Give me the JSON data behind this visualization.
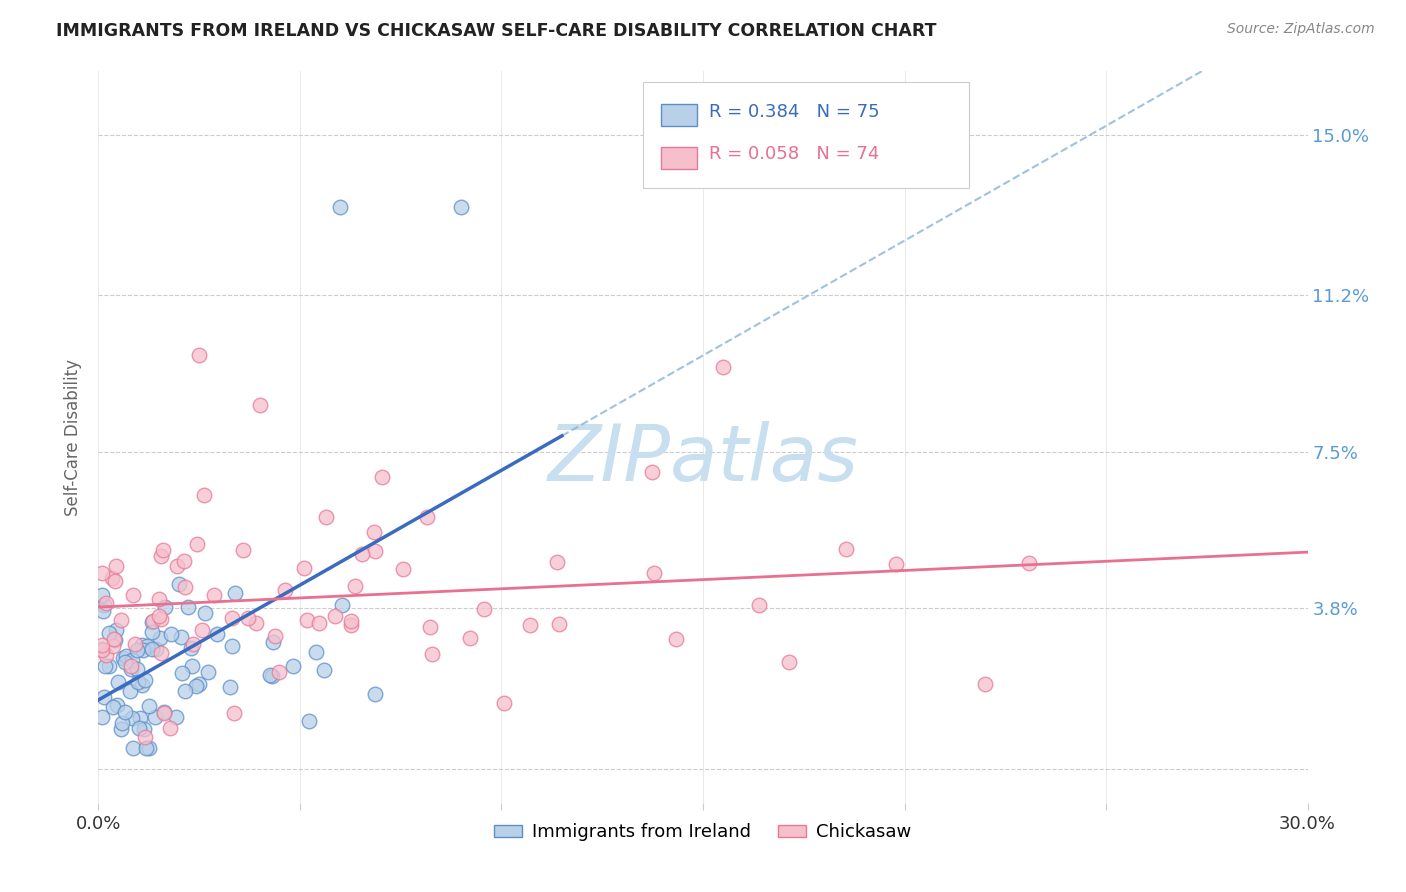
{
  "title": "IMMIGRANTS FROM IRELAND VS CHICKASAW SELF-CARE DISABILITY CORRELATION CHART",
  "source": "Source: ZipAtlas.com",
  "ylabel": "Self-Care Disability",
  "xlim": [
    0.0,
    0.3
  ],
  "ylim": [
    -0.008,
    0.165
  ],
  "xtick_pos": [
    0.0,
    0.05,
    0.1,
    0.15,
    0.2,
    0.25,
    0.3
  ],
  "xtick_labels": [
    "0.0%",
    "",
    "",
    "",
    "",
    "",
    "30.0%"
  ],
  "ytick_pos": [
    0.0,
    0.038,
    0.075,
    0.112,
    0.15
  ],
  "ytick_labels_right": [
    "",
    "3.8%",
    "7.5%",
    "11.2%",
    "15.0%"
  ],
  "r_blue": 0.384,
  "n_blue": 75,
  "r_pink": 0.058,
  "n_pink": 74,
  "legend_label_blue": "Immigrants from Ireland",
  "legend_label_pink": "Chickasaw",
  "blue_face_color": "#b8d0e8",
  "blue_edge_color": "#5b8fc9",
  "pink_face_color": "#f5c0cc",
  "pink_edge_color": "#e87898",
  "blue_line_color": "#3a6bbf",
  "pink_line_color": "#e87090",
  "dash_line_color": "#90b8d8",
  "watermark_color": "#c8dff0",
  "background_color": "#ffffff",
  "grid_color": "#cccccc",
  "right_axis_color": "#5b9bd5",
  "title_color": "#222222",
  "source_color": "#888888",
  "ylabel_color": "#666666"
}
